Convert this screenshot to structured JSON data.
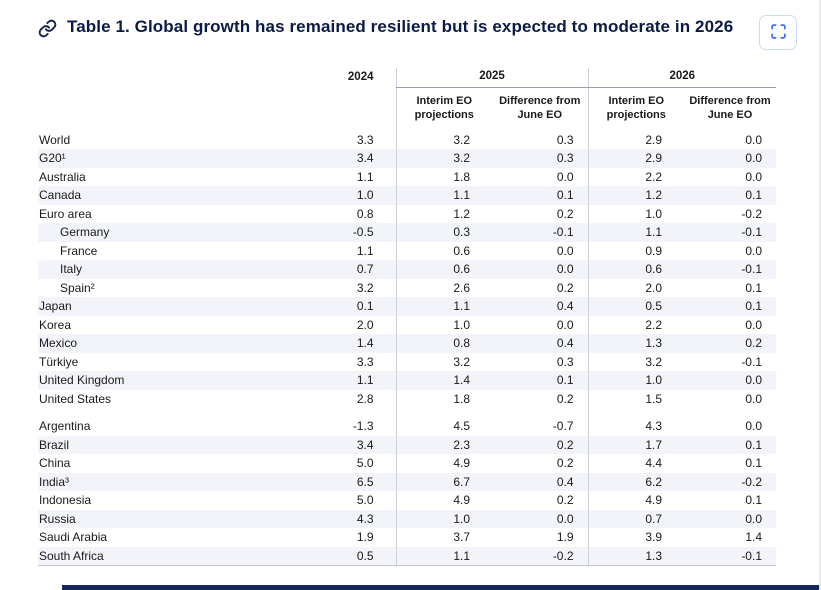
{
  "header": {
    "title": "Table 1. Global growth has remained resilient but is expected to moderate in 2026"
  },
  "icons": {
    "title_link": "link-icon",
    "expand": "fullscreen-expand-icon"
  },
  "table_headers": {
    "y2024": "2024",
    "y2025": "2025",
    "y2026": "2026",
    "interim_2025": "Interim EO projections",
    "diff_2025": "Difference from June EO",
    "interim_2026": "Interim EO projections",
    "diff_2026": "Difference from June EO"
  },
  "chart_data": {
    "type": "table",
    "title": "Table 1. Global growth has remained resilient but is expected to moderate in 2026",
    "column_groups": [
      {
        "label": "2024",
        "columns": [
          "2024"
        ]
      },
      {
        "label": "2025",
        "columns": [
          "Interim EO projections",
          "Difference from June EO"
        ]
      },
      {
        "label": "2026",
        "columns": [
          "Interim EO projections",
          "Difference from June EO"
        ]
      }
    ],
    "row_groups": [
      [
        {
          "name": "World",
          "indent": false,
          "values": [
            "3.3",
            "3.2",
            "0.3",
            "2.9",
            "0.0"
          ]
        },
        {
          "name": "G20¹",
          "indent": false,
          "values": [
            "3.4",
            "3.2",
            "0.3",
            "2.9",
            "0.0"
          ]
        },
        {
          "name": "Australia",
          "indent": false,
          "values": [
            "1.1",
            "1.8",
            "0.0",
            "2.2",
            "0.0"
          ]
        },
        {
          "name": "Canada",
          "indent": false,
          "values": [
            "1.0",
            "1.1",
            "0.1",
            "1.2",
            "0.1"
          ]
        },
        {
          "name": "Euro area",
          "indent": false,
          "values": [
            "0.8",
            "1.2",
            "0.2",
            "1.0",
            "-0.2"
          ]
        },
        {
          "name": "Germany",
          "indent": true,
          "values": [
            "-0.5",
            "0.3",
            "-0.1",
            "1.1",
            "-0.1"
          ]
        },
        {
          "name": "France",
          "indent": true,
          "values": [
            "1.1",
            "0.6",
            "0.0",
            "0.9",
            "0.0"
          ]
        },
        {
          "name": "Italy",
          "indent": true,
          "values": [
            "0.7",
            "0.6",
            "0.0",
            "0.6",
            "-0.1"
          ]
        },
        {
          "name": "Spain²",
          "indent": true,
          "values": [
            "3.2",
            "2.6",
            "0.2",
            "2.0",
            "0.1"
          ]
        },
        {
          "name": "Japan",
          "indent": false,
          "values": [
            "0.1",
            "1.1",
            "0.4",
            "0.5",
            "0.1"
          ]
        },
        {
          "name": "Korea",
          "indent": false,
          "values": [
            "2.0",
            "1.0",
            "0.0",
            "2.2",
            "0.0"
          ]
        },
        {
          "name": "Mexico",
          "indent": false,
          "values": [
            "1.4",
            "0.8",
            "0.4",
            "1.3",
            "0.2"
          ]
        },
        {
          "name": "Türkiye",
          "indent": false,
          "values": [
            "3.3",
            "3.2",
            "0.3",
            "3.2",
            "-0.1"
          ]
        },
        {
          "name": "United Kingdom",
          "indent": false,
          "values": [
            "1.1",
            "1.4",
            "0.1",
            "1.0",
            "0.0"
          ]
        },
        {
          "name": "United States",
          "indent": false,
          "values": [
            "2.8",
            "1.8",
            "0.2",
            "1.5",
            "0.0"
          ]
        }
      ],
      [
        {
          "name": "Argentina",
          "indent": false,
          "values": [
            "-1.3",
            "4.5",
            "-0.7",
            "4.3",
            "0.0"
          ]
        },
        {
          "name": "Brazil",
          "indent": false,
          "values": [
            "3.4",
            "2.3",
            "0.2",
            "1.7",
            "0.1"
          ]
        },
        {
          "name": "China",
          "indent": false,
          "values": [
            "5.0",
            "4.9",
            "0.2",
            "4.4",
            "0.1"
          ]
        },
        {
          "name": "India³",
          "indent": false,
          "values": [
            "6.5",
            "6.7",
            "0.4",
            "6.2",
            "-0.2"
          ]
        },
        {
          "name": "Indonesia",
          "indent": false,
          "values": [
            "5.0",
            "4.9",
            "0.2",
            "4.9",
            "0.1"
          ]
        },
        {
          "name": "Russia",
          "indent": false,
          "values": [
            "4.3",
            "1.0",
            "0.0",
            "0.7",
            "0.0"
          ]
        },
        {
          "name": "Saudi Arabia",
          "indent": false,
          "values": [
            "1.9",
            "3.7",
            "1.9",
            "3.9",
            "1.4"
          ]
        },
        {
          "name": "South Africa",
          "indent": false,
          "values": [
            "0.5",
            "1.1",
            "-0.2",
            "1.3",
            "-0.1"
          ]
        }
      ]
    ]
  },
  "colors": {
    "title_navy": "#0c1b45",
    "accent_blue": "#3f6cf0",
    "stripe": "#f2f4fa",
    "separator": "#ccd0da",
    "group_underline": "#979da9",
    "bottom_bar": "#16265a"
  }
}
